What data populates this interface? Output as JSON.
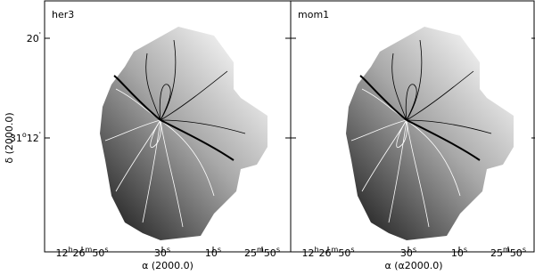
{
  "panels": [
    {
      "label": "her3",
      "x_axis_label": "α (2000.0)"
    },
    {
      "label": "mom1",
      "x_axis_label": "α (α2000.0)"
    }
  ],
  "x_ticks": [
    [
      "12",
      "h",
      "26",
      "m",
      "50",
      "s"
    ],
    [
      "30",
      "s"
    ],
    [
      "10",
      "s"
    ],
    [
      "25",
      "m",
      "50",
      "s"
    ]
  ],
  "y_axis_label": "δ (2000.0)",
  "y_ticks": [
    [
      "20",
      "'"
    ],
    [
      "31",
      "o",
      "12",
      "'"
    ]
  ]
}
